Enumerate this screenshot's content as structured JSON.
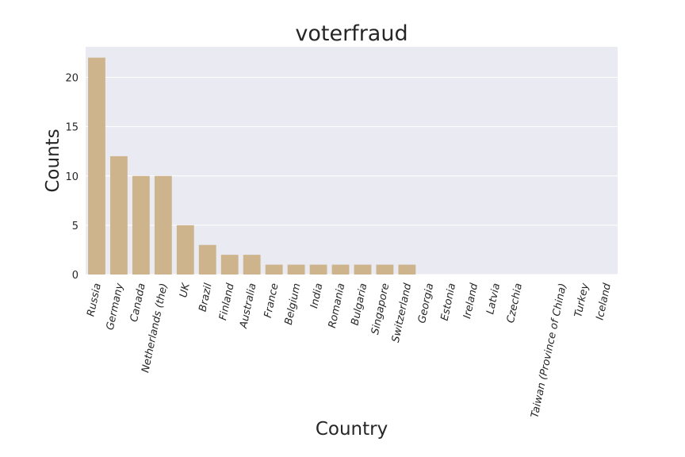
{
  "chart_data": {
    "type": "bar",
    "title": "voterfraud",
    "xlabel": "Country",
    "ylabel": "Counts",
    "categories": [
      "Russia",
      "Germany",
      "Canada",
      "Netherlands (the)",
      "UK",
      "Brazil",
      "Finland",
      "Australia",
      "France",
      "Belgium",
      "India",
      "Romania",
      "Bulgaria",
      "Singapore",
      "Switzerland",
      "Georgia",
      "Estonia",
      "Ireland",
      "Latvia",
      "Czechia",
      "",
      "Taiwan (Province of China)",
      "Turkey",
      "Iceland"
    ],
    "values": [
      22,
      12,
      10,
      10,
      5,
      3,
      2,
      2,
      1,
      1,
      1,
      1,
      1,
      1,
      1,
      0,
      0,
      0,
      0,
      0,
      0,
      0,
      0,
      0
    ],
    "yticks": [
      0,
      5,
      10,
      15,
      20
    ],
    "ylim": [
      0,
      23.1
    ],
    "grid": true,
    "legend": "none",
    "bar_color": "#cdb48d",
    "plot_background": "#eaeaf2",
    "grid_color": "#ffffff"
  }
}
